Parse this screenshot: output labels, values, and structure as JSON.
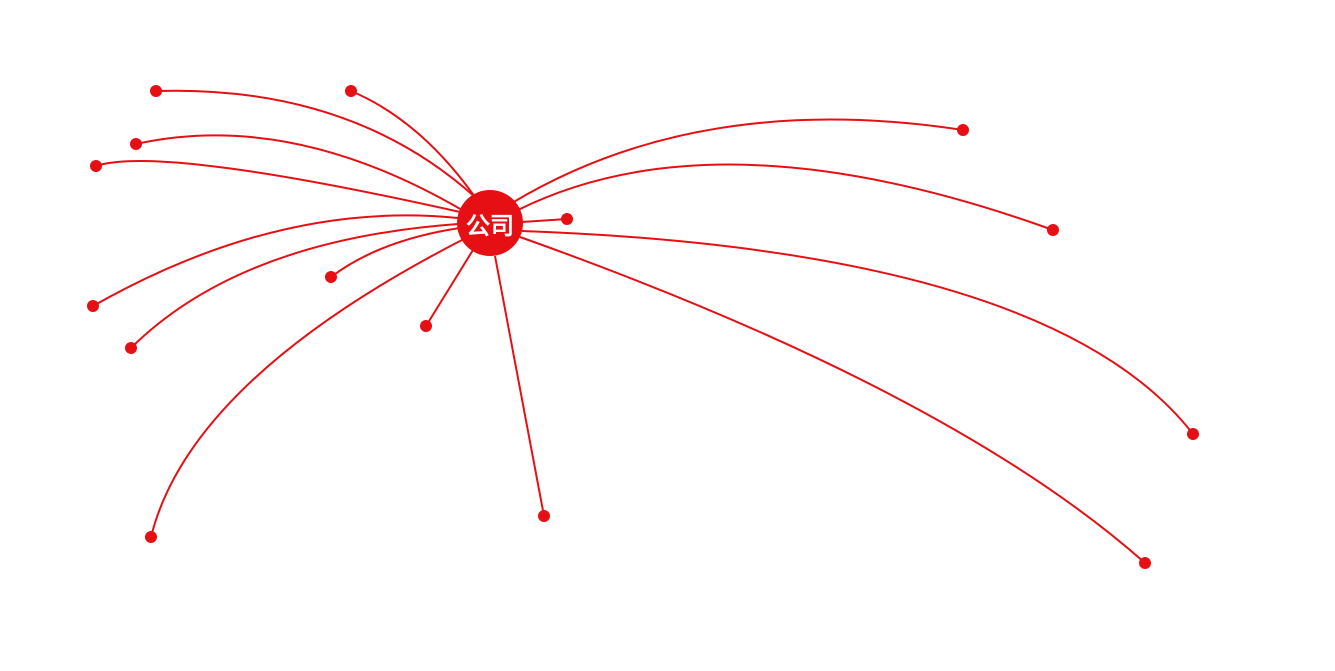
{
  "diagram": {
    "center_label": "公司",
    "color": "#e60f14",
    "leaf_count": 15
  }
}
